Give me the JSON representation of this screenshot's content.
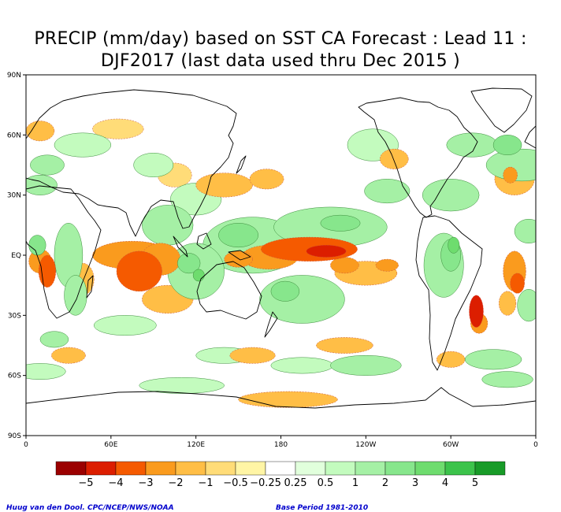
{
  "title_lines": [
    "PRECIP (mm/day) based on SST CA Forecast : Lead 11 :",
    "DJF2017 (last data used thru Dec 2015 )"
  ],
  "footer": {
    "left": "Huug van den Dool. CPC/NCEP/NWS/NOAA",
    "right": "Base Period 1981-2010"
  },
  "colors": {
    "dry": [
      "#9b0000",
      "#dc1e00",
      "#f55a00",
      "#fa9b1e",
      "#ffbe46",
      "#ffdc78",
      "#fff5a5"
    ],
    "neutral": "#ffffff",
    "wet": [
      "#e1ffdc",
      "#c3fbbe",
      "#a5f0a5",
      "#87e68c",
      "#6edc6e",
      "#3cc34b",
      "#189b28"
    ],
    "land_outline": "#000000"
  },
  "chart_data": {
    "type": "heatmap",
    "title": "PRECIP (mm/day) based on SST CA Forecast : Lead 11 : DJF2017 (last data used thru Dec 2015 )",
    "variable": "precipitation anomaly (mm/day)",
    "projection": "cylindrical equidistant",
    "lon_range": [
      0,
      360
    ],
    "lat_range": [
      -90,
      90
    ],
    "x_ticks": [
      {
        "lon": 0,
        "label": "0"
      },
      {
        "lon": 60,
        "label": "60E"
      },
      {
        "lon": 120,
        "label": "120E"
      },
      {
        "lon": 180,
        "label": "180"
      },
      {
        "lon": 240,
        "label": "120W"
      },
      {
        "lon": 300,
        "label": "60W"
      },
      {
        "lon": 360,
        "label": "0"
      }
    ],
    "y_ticks": [
      {
        "lat": 90,
        "label": "90N"
      },
      {
        "lat": 60,
        "label": "60N"
      },
      {
        "lat": 30,
        "label": "30N"
      },
      {
        "lat": 0,
        "label": "EQ"
      },
      {
        "lat": -30,
        "label": "30S"
      },
      {
        "lat": -60,
        "label": "60S"
      },
      {
        "lat": -90,
        "label": "90S"
      }
    ],
    "colorbar_labels": [
      "−5",
      "−4",
      "−3",
      "−2",
      "−1",
      "−0.5",
      "−0.25",
      "0.25",
      "0.5",
      "1",
      "2",
      "3",
      "4",
      "5"
    ],
    "contour_levels": [
      -5,
      -4,
      -3,
      -2,
      -1,
      -0.5,
      -0.25,
      0.25,
      0.5,
      1,
      2,
      3,
      4,
      5
    ],
    "anomaly_regions": [
      {
        "lon": 200,
        "lat": 3,
        "rx": 34,
        "ry": 6,
        "value": -3
      },
      {
        "lon": 212,
        "lat": 2,
        "rx": 14,
        "ry": 3,
        "value": -4
      },
      {
        "lon": 172,
        "lat": -1,
        "rx": 20,
        "ry": 6,
        "value": -2
      },
      {
        "lon": 150,
        "lat": -2,
        "rx": 10,
        "ry": 4,
        "value": -2
      },
      {
        "lon": 240,
        "lat": -9,
        "rx": 22,
        "ry": 6,
        "value": -1
      },
      {
        "lon": 225,
        "lat": -5,
        "rx": 10,
        "ry": 4,
        "value": -2
      },
      {
        "lon": 255,
        "lat": -5,
        "rx": 8,
        "ry": 3,
        "value": -2
      },
      {
        "lon": 75,
        "lat": 0,
        "rx": 28,
        "ry": 7,
        "value": -2
      },
      {
        "lon": 80,
        "lat": -8,
        "rx": 16,
        "ry": 10,
        "value": -3
      },
      {
        "lon": 95,
        "lat": -2,
        "rx": 14,
        "ry": 8,
        "value": -2
      },
      {
        "lon": 100,
        "lat": -22,
        "rx": 18,
        "ry": 7,
        "value": -1
      },
      {
        "lon": 10,
        "lat": -3,
        "rx": 8,
        "ry": 6,
        "value": -2
      },
      {
        "lon": 15,
        "lat": -8,
        "rx": 6,
        "ry": 8,
        "value": -3
      },
      {
        "lon": 40,
        "lat": -12,
        "rx": 8,
        "ry": 8,
        "value": -1
      },
      {
        "lon": 318,
        "lat": -28,
        "rx": 5,
        "ry": 8,
        "value": -4
      },
      {
        "lon": 320,
        "lat": -34,
        "rx": 6,
        "ry": 5,
        "value": -2
      },
      {
        "lon": 345,
        "lat": -8,
        "rx": 8,
        "ry": 10,
        "value": -2
      },
      {
        "lon": 347,
        "lat": -14,
        "rx": 5,
        "ry": 5,
        "value": -3
      },
      {
        "lon": 340,
        "lat": -24,
        "rx": 6,
        "ry": 6,
        "value": -1
      },
      {
        "lon": 345,
        "lat": 38,
        "rx": 14,
        "ry": 8,
        "value": -1
      },
      {
        "lon": 342,
        "lat": 40,
        "rx": 5,
        "ry": 4,
        "value": -2
      },
      {
        "lon": 260,
        "lat": 48,
        "rx": 10,
        "ry": 5,
        "value": -1
      },
      {
        "lon": 140,
        "lat": 35,
        "rx": 20,
        "ry": 6,
        "value": -1
      },
      {
        "lon": 170,
        "lat": 38,
        "rx": 12,
        "ry": 5,
        "value": -1
      },
      {
        "lon": 105,
        "lat": 40,
        "rx": 12,
        "ry": 6,
        "value": -0.5
      },
      {
        "lon": 10,
        "lat": 62,
        "rx": 10,
        "ry": 5,
        "value": -1
      },
      {
        "lon": 65,
        "lat": 63,
        "rx": 18,
        "ry": 5,
        "value": -0.5
      },
      {
        "lon": 30,
        "lat": -50,
        "rx": 12,
        "ry": 4,
        "value": -1
      },
      {
        "lon": 160,
        "lat": -50,
        "rx": 16,
        "ry": 4,
        "value": -1
      },
      {
        "lon": 225,
        "lat": -45,
        "rx": 20,
        "ry": 4,
        "value": -1
      },
      {
        "lon": 300,
        "lat": -52,
        "rx": 10,
        "ry": 4,
        "value": -1
      },
      {
        "lon": 185,
        "lat": -72,
        "rx": 35,
        "ry": 4,
        "value": -1
      },
      {
        "lon": 160,
        "lat": 5,
        "rx": 35,
        "ry": 14,
        "value": 1
      },
      {
        "lon": 150,
        "lat": 10,
        "rx": 14,
        "ry": 6,
        "value": 2
      },
      {
        "lon": 215,
        "lat": 14,
        "rx": 40,
        "ry": 10,
        "value": 1
      },
      {
        "lon": 222,
        "lat": 16,
        "rx": 14,
        "ry": 4,
        "value": 2
      },
      {
        "lon": 195,
        "lat": -22,
        "rx": 30,
        "ry": 12,
        "value": 1
      },
      {
        "lon": 183,
        "lat": -18,
        "rx": 10,
        "ry": 5,
        "value": 2
      },
      {
        "lon": 120,
        "lat": -8,
        "rx": 20,
        "ry": 14,
        "value": 1
      },
      {
        "lon": 115,
        "lat": -4,
        "rx": 8,
        "ry": 5,
        "value": 2
      },
      {
        "lon": 122,
        "lat": -10,
        "rx": 4,
        "ry": 3,
        "value": 3
      },
      {
        "lon": 100,
        "lat": 15,
        "rx": 18,
        "ry": 10,
        "value": 1
      },
      {
        "lon": 120,
        "lat": 28,
        "rx": 18,
        "ry": 8,
        "value": 0.5
      },
      {
        "lon": 295,
        "lat": -5,
        "rx": 14,
        "ry": 16,
        "value": 1
      },
      {
        "lon": 300,
        "lat": 0,
        "rx": 7,
        "ry": 8,
        "value": 2
      },
      {
        "lon": 302,
        "lat": 5,
        "rx": 4,
        "ry": 4,
        "value": 3
      },
      {
        "lon": 355,
        "lat": 12,
        "rx": 10,
        "ry": 6,
        "value": 1
      },
      {
        "lon": 8,
        "lat": 5,
        "rx": 6,
        "ry": 5,
        "value": 2
      },
      {
        "lon": 30,
        "lat": 0,
        "rx": 10,
        "ry": 16,
        "value": 1
      },
      {
        "lon": 35,
        "lat": -20,
        "rx": 8,
        "ry": 10,
        "value": 1
      },
      {
        "lon": 350,
        "lat": 45,
        "rx": 25,
        "ry": 8,
        "value": 1
      },
      {
        "lon": 340,
        "lat": 55,
        "rx": 10,
        "ry": 5,
        "value": 2
      },
      {
        "lon": 40,
        "lat": 55,
        "rx": 20,
        "ry": 6,
        "value": 0.5
      },
      {
        "lon": 15,
        "lat": 45,
        "rx": 12,
        "ry": 5,
        "value": 1
      },
      {
        "lon": 90,
        "lat": 45,
        "rx": 14,
        "ry": 6,
        "value": 0.5
      },
      {
        "lon": 245,
        "lat": 55,
        "rx": 18,
        "ry": 8,
        "value": 0.5
      },
      {
        "lon": 255,
        "lat": 32,
        "rx": 16,
        "ry": 6,
        "value": 1
      },
      {
        "lon": 300,
        "lat": 30,
        "rx": 20,
        "ry": 8,
        "value": 1
      },
      {
        "lon": 315,
        "lat": 55,
        "rx": 18,
        "ry": 6,
        "value": 1
      },
      {
        "lon": 10,
        "lat": 35,
        "rx": 12,
        "ry": 5,
        "value": 1
      },
      {
        "lon": 70,
        "lat": -35,
        "rx": 22,
        "ry": 5,
        "value": 0.5
      },
      {
        "lon": 20,
        "lat": -42,
        "rx": 10,
        "ry": 4,
        "value": 1
      },
      {
        "lon": 140,
        "lat": -50,
        "rx": 20,
        "ry": 4,
        "value": 0.5
      },
      {
        "lon": 195,
        "lat": -55,
        "rx": 22,
        "ry": 4,
        "value": 0.5
      },
      {
        "lon": 240,
        "lat": -55,
        "rx": 25,
        "ry": 5,
        "value": 1
      },
      {
        "lon": 330,
        "lat": -52,
        "rx": 20,
        "ry": 5,
        "value": 1
      },
      {
        "lon": 10,
        "lat": -58,
        "rx": 18,
        "ry": 4,
        "value": 0.5
      },
      {
        "lon": 110,
        "lat": -65,
        "rx": 30,
        "ry": 4,
        "value": 0.5
      },
      {
        "lon": 340,
        "lat": -62,
        "rx": 18,
        "ry": 4,
        "value": 1
      },
      {
        "lon": 355,
        "lat": -25,
        "rx": 8,
        "ry": 8,
        "value": 1
      }
    ]
  }
}
